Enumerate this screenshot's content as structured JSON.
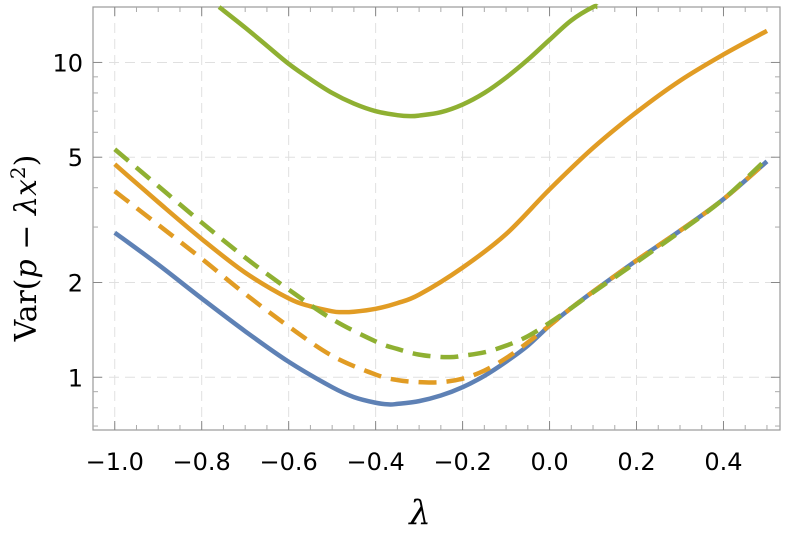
{
  "chart_data": {
    "type": "line",
    "title": "",
    "xlabel": "λ",
    "ylabel": "Var(p − λx²)",
    "ylabel_parts": {
      "pre": "Var(",
      "p": "p",
      "mid": " − λ",
      "x": "x",
      "sup": "2",
      "post": ")"
    },
    "x_scale": "linear",
    "y_scale": "log",
    "xlim": [
      -1.05,
      0.53
    ],
    "ylim": [
      0.68,
      15.0
    ],
    "x_ticks": [
      -1.0,
      -0.8,
      -0.6,
      -0.4,
      -0.2,
      0.0,
      0.2,
      0.4
    ],
    "x_tick_labels": [
      "−1.0",
      "−0.8",
      "−0.6",
      "−0.4",
      "−0.2",
      "0.0",
      "0.2",
      "0.4"
    ],
    "y_ticks": [
      1,
      2,
      5,
      10
    ],
    "y_tick_labels": [
      "1",
      "2",
      "5",
      "10"
    ],
    "grid": true,
    "legend": "none",
    "series": [
      {
        "color": "#5e81b5",
        "dash": "solid",
        "x": [
          -1.0,
          -0.9,
          -0.8,
          -0.7,
          -0.6,
          -0.5,
          -0.45,
          -0.4,
          -0.37,
          -0.35,
          -0.3,
          -0.25,
          -0.2,
          -0.15,
          -0.1,
          -0.05,
          0.0,
          0.05,
          0.1,
          0.2,
          0.3,
          0.4,
          0.5
        ],
        "y": [
          2.88,
          2.28,
          1.78,
          1.4,
          1.12,
          0.93,
          0.865,
          0.83,
          0.82,
          0.823,
          0.84,
          0.875,
          0.93,
          1.01,
          1.12,
          1.26,
          1.46,
          1.66,
          1.87,
          2.35,
          2.92,
          3.68,
          4.85
        ]
      },
      {
        "color": "#e19c24",
        "dash": "dashed",
        "x": [
          -1.0,
          -0.9,
          -0.8,
          -0.7,
          -0.6,
          -0.5,
          -0.4,
          -0.35,
          -0.3,
          -0.25,
          -0.2,
          -0.15,
          -0.1,
          -0.05,
          0.0,
          0.05,
          0.1,
          0.2,
          0.3,
          0.4,
          0.5
        ],
        "y": [
          3.9,
          3.05,
          2.38,
          1.84,
          1.45,
          1.17,
          1.02,
          0.98,
          0.965,
          0.965,
          0.99,
          1.05,
          1.15,
          1.29,
          1.46,
          1.66,
          1.87,
          2.35,
          2.92,
          3.68,
          4.85
        ]
      },
      {
        "color": "#e19c24",
        "dash": "solid",
        "x": [
          -1.0,
          -0.9,
          -0.8,
          -0.7,
          -0.6,
          -0.55,
          -0.5,
          -0.48,
          -0.45,
          -0.4,
          -0.35,
          -0.3,
          -0.2,
          -0.1,
          0.0,
          0.1,
          0.2,
          0.3,
          0.4,
          0.5
        ],
        "y": [
          4.75,
          3.6,
          2.75,
          2.15,
          1.78,
          1.68,
          1.62,
          1.61,
          1.615,
          1.65,
          1.72,
          1.83,
          2.23,
          2.85,
          3.95,
          5.35,
          6.95,
          8.75,
          10.6,
          12.6
        ]
      },
      {
        "color": "#8fb032",
        "dash": "dashed",
        "x": [
          -1.0,
          -0.9,
          -0.8,
          -0.7,
          -0.6,
          -0.5,
          -0.4,
          -0.35,
          -0.3,
          -0.25,
          -0.22,
          -0.2,
          -0.15,
          -0.1,
          -0.05,
          0.0,
          0.05,
          0.1,
          0.2,
          0.3,
          0.4,
          0.5
        ],
        "y": [
          5.3,
          4.05,
          3.1,
          2.4,
          1.9,
          1.53,
          1.3,
          1.23,
          1.18,
          1.16,
          1.16,
          1.17,
          1.2,
          1.26,
          1.35,
          1.49,
          1.66,
          1.86,
          2.32,
          2.9,
          3.68,
          4.95
        ]
      },
      {
        "color": "#8fb032",
        "dash": "solid",
        "x": [
          -0.76,
          -0.7,
          -0.65,
          -0.6,
          -0.55,
          -0.5,
          -0.45,
          -0.4,
          -0.35,
          -0.32,
          -0.3,
          -0.25,
          -0.2,
          -0.15,
          -0.1,
          -0.05,
          0.0,
          0.05,
          0.1,
          0.11
        ],
        "y": [
          15.0,
          12.9,
          11.3,
          9.9,
          8.85,
          8.0,
          7.4,
          7.0,
          6.8,
          6.75,
          6.78,
          6.95,
          7.35,
          8.0,
          8.95,
          10.2,
          11.8,
          13.6,
          15.0,
          15.0
        ]
      }
    ]
  }
}
